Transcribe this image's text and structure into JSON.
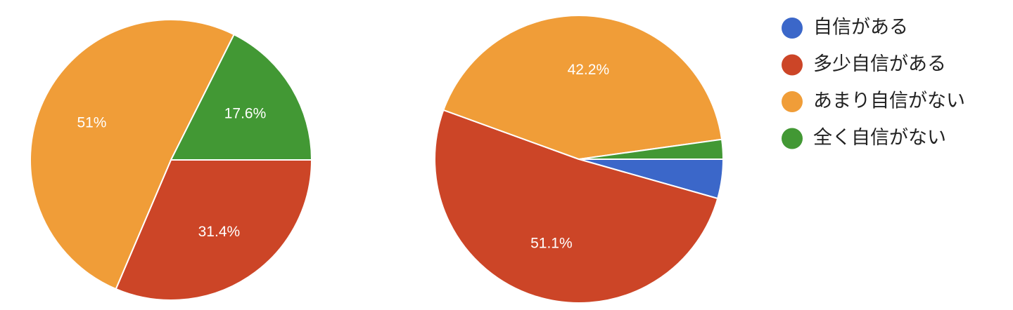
{
  "chart_data": [
    {
      "type": "pie",
      "categories": [
        "自信がある",
        "多少自信がある",
        "あまり自信がない",
        "全く自信がない"
      ],
      "values": [
        0,
        31.4,
        51,
        17.6
      ],
      "value_labels": [
        null,
        "31.4%",
        "51%",
        "17.6%"
      ],
      "colors": [
        "#3b67c9",
        "#cc4527",
        "#f09d38",
        "#429834"
      ]
    },
    {
      "type": "pie",
      "categories": [
        "自信がある",
        "多少自信がある",
        "あまり自信がない",
        "全く自信がない"
      ],
      "values": [
        4.4,
        51.1,
        42.2,
        2.2
      ],
      "value_labels": [
        null,
        "51.1%",
        "42.2%",
        null
      ],
      "colors": [
        "#3b67c9",
        "#cc4527",
        "#f09d38",
        "#429834"
      ]
    }
  ]
}
